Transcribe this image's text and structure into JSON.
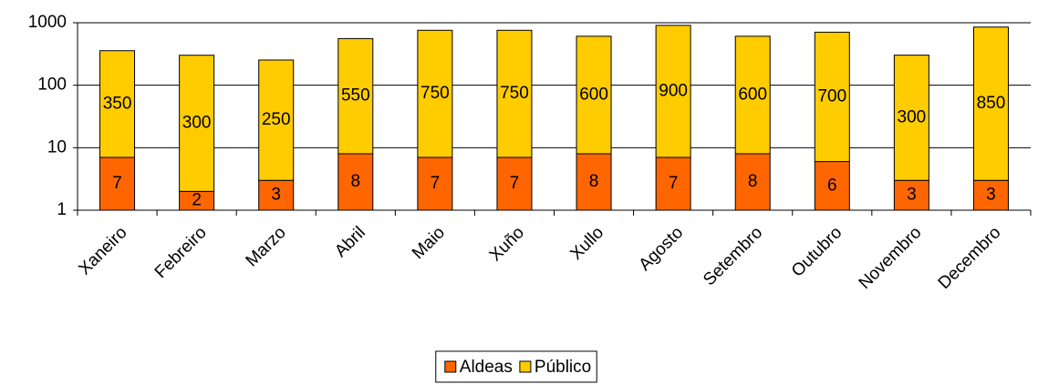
{
  "chart_data": {
    "type": "bar",
    "stacked": true,
    "log_scale": true,
    "grid": true,
    "legend": "bottom",
    "categories": [
      "Xaneiro",
      "Febreiro",
      "Marzo",
      "Abril",
      "Maio",
      "Xuño",
      "Xullo",
      "Agosto",
      "Setembro",
      "Outubro",
      "Novembro",
      "Decembro"
    ],
    "series": [
      {
        "name": "Aldeas",
        "color": "#ff6600",
        "values": [
          7,
          2,
          3,
          8,
          7,
          7,
          8,
          7,
          8,
          6,
          3,
          3
        ]
      },
      {
        "name": "Público",
        "color": "#ffcc00",
        "values": [
          350,
          300,
          250,
          550,
          750,
          750,
          600,
          900,
          600,
          700,
          300,
          850
        ]
      }
    ],
    "ylim": [
      1,
      1000
    ],
    "yticks": [
      1,
      10,
      100,
      1000
    ]
  }
}
